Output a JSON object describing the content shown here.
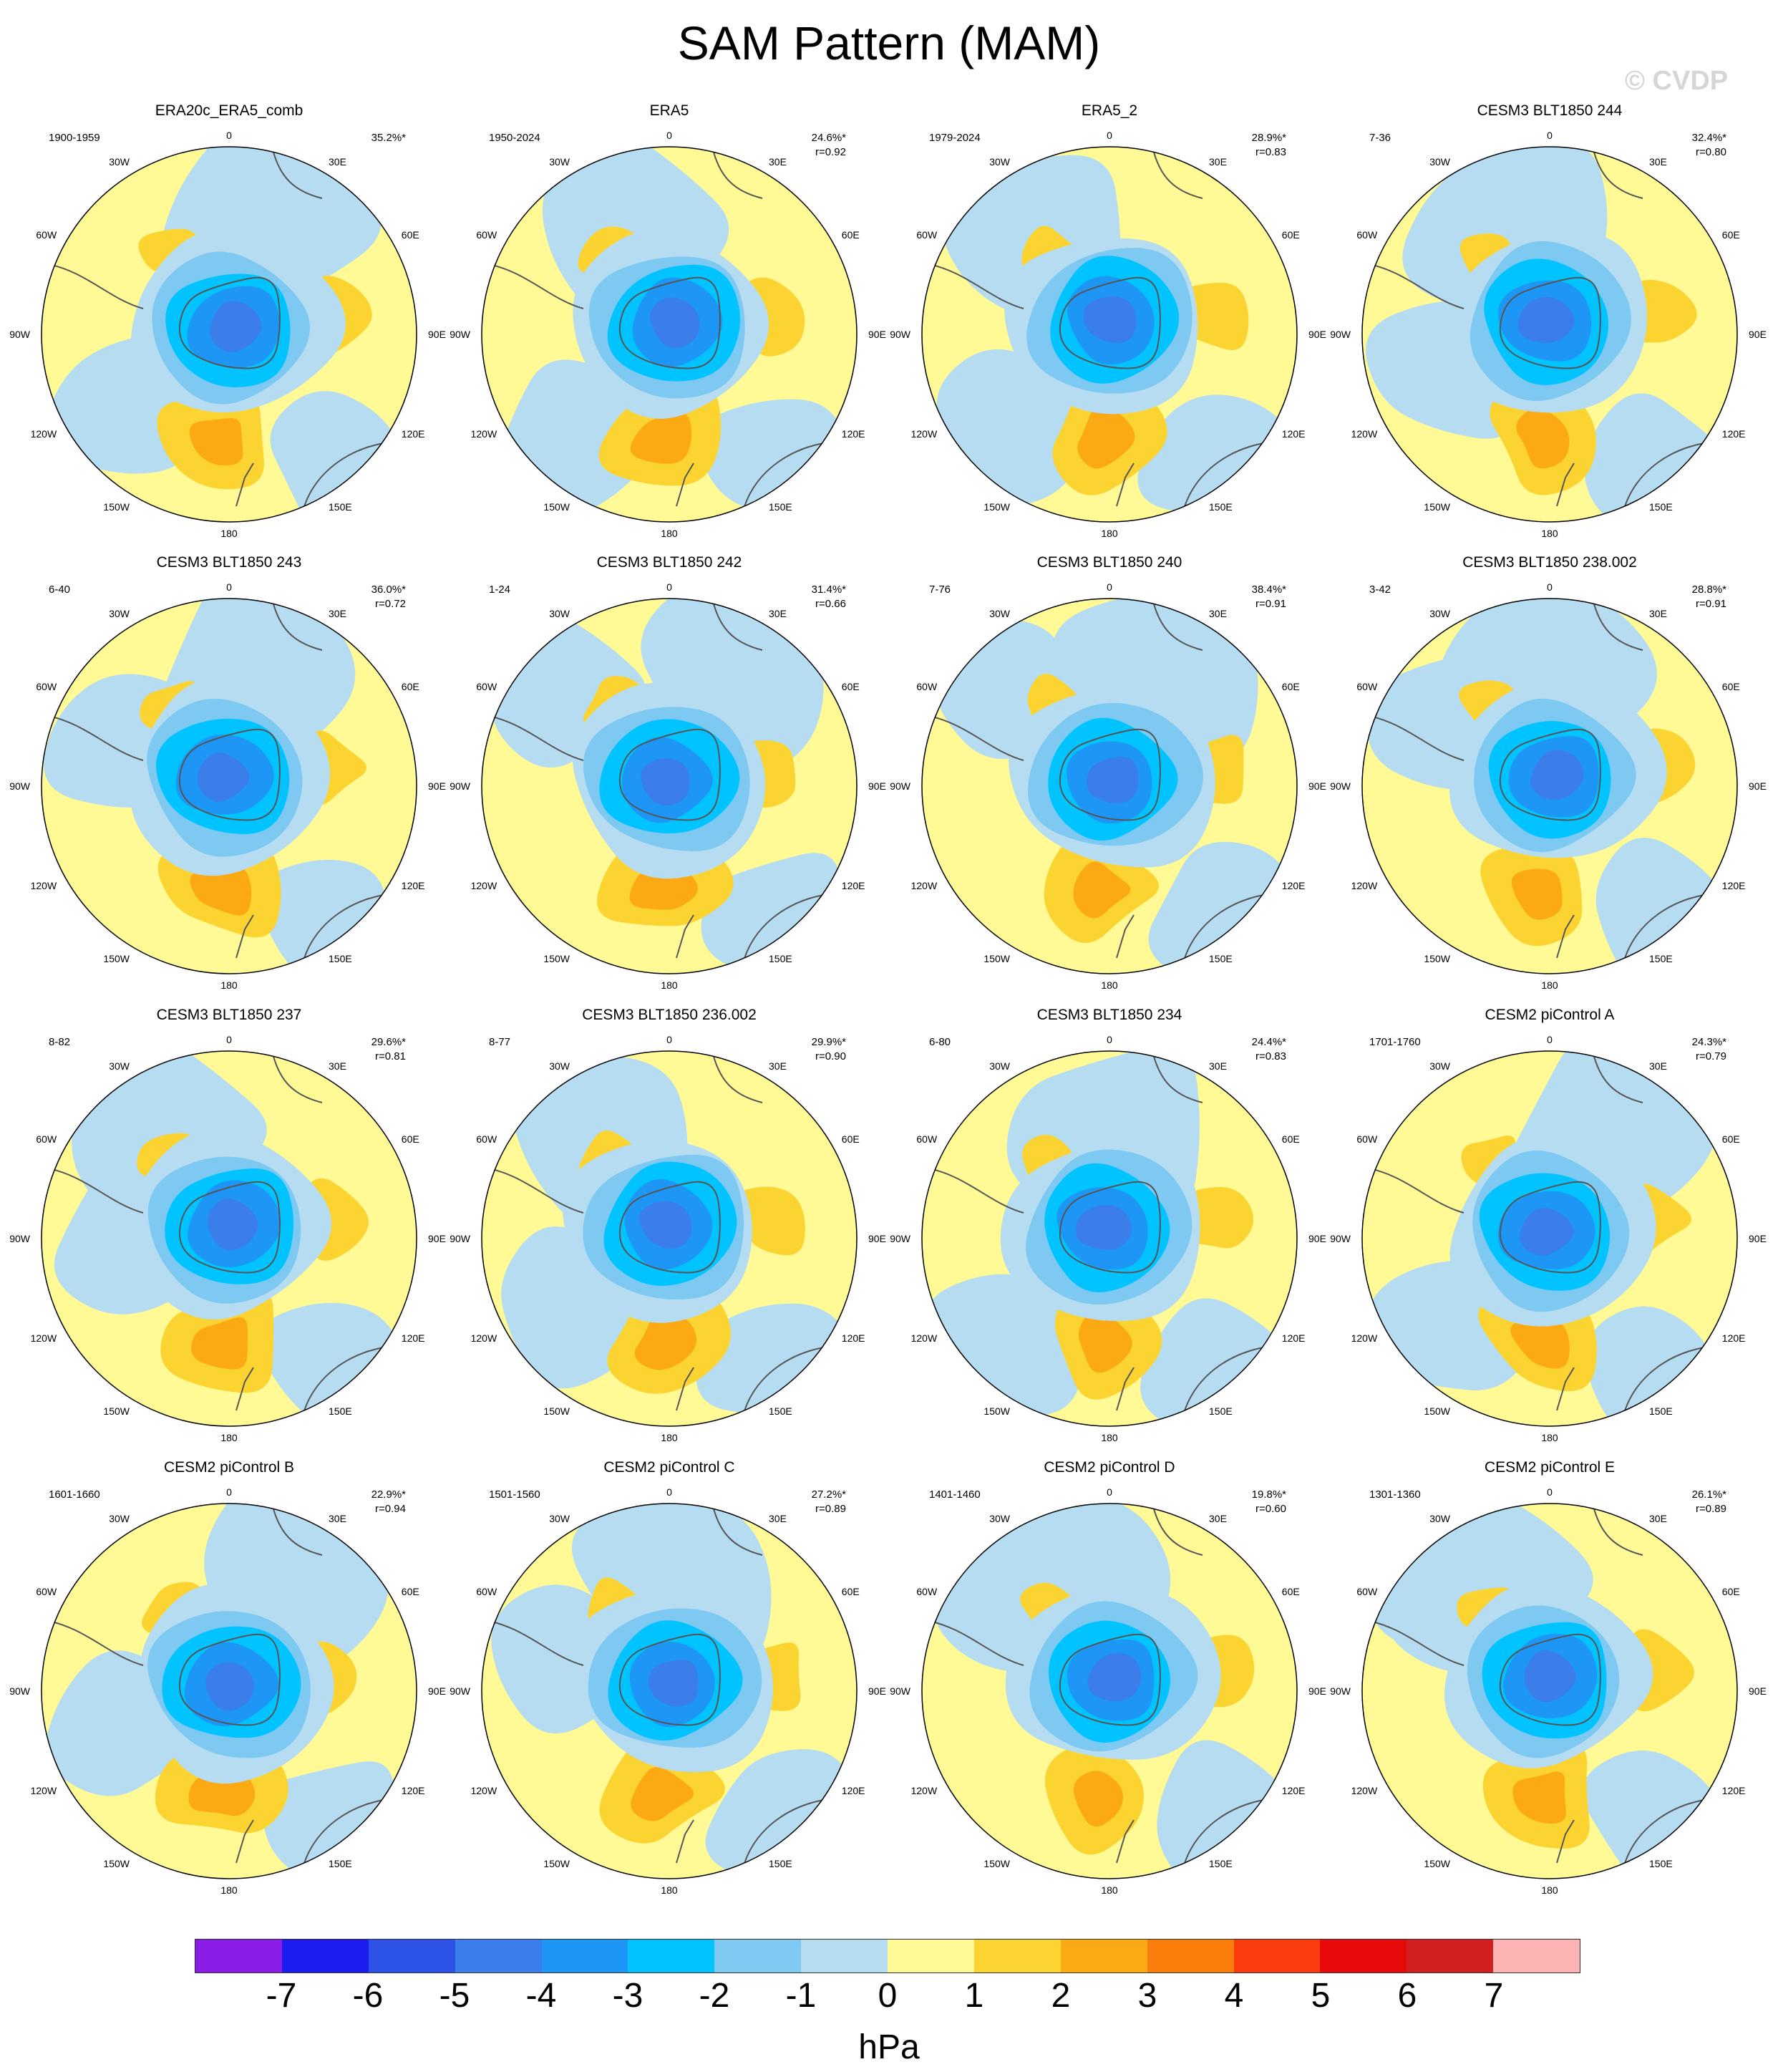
{
  "title": "SAM Pattern (MAM)",
  "watermark": "© CVDP",
  "lon_labels": [
    "0",
    "30E",
    "60E",
    "90E",
    "120E",
    "150E",
    "180",
    "150W",
    "120W",
    "90W",
    "60W",
    "30W"
  ],
  "colors": {
    "levels": [
      "#8c1de6",
      "#1c1cf0",
      "#2d52e6",
      "#3a7deb",
      "#1e96f5",
      "#00c3ff",
      "#7ec9f2",
      "#b6dcf1",
      "#fffa96",
      "#fcd431",
      "#fbaa14",
      "#fb7d0c",
      "#fb3c0c",
      "#e80a0a",
      "#d22020",
      "#feb4b4"
    ],
    "coast": "#555555",
    "border": "#000000"
  },
  "colorbar": {
    "ticks": [
      "-7",
      "-6",
      "-5",
      "-4",
      "-3",
      "-2",
      "-1",
      "0",
      "1",
      "2",
      "3",
      "4",
      "5",
      "6",
      "7"
    ],
    "units": "hPa"
  },
  "panels": [
    {
      "title": "ERA20c_ERA5_comb",
      "years": "1900-1959",
      "pct": "35.2%*",
      "r": ""
    },
    {
      "title": "ERA5",
      "years": "1950-2024",
      "pct": "24.6%*",
      "r": "r=0.92"
    },
    {
      "title": "ERA5_2",
      "years": "1979-2024",
      "pct": "28.9%*",
      "r": "r=0.83"
    },
    {
      "title": "CESM3 BLT1850 244",
      "years": "7-36",
      "pct": "32.4%*",
      "r": "r=0.80"
    },
    {
      "title": "CESM3 BLT1850 243",
      "years": "6-40",
      "pct": "36.0%*",
      "r": "r=0.72"
    },
    {
      "title": "CESM3 BLT1850 242",
      "years": "1-24",
      "pct": "31.4%*",
      "r": "r=0.66"
    },
    {
      "title": "CESM3 BLT1850 240",
      "years": "7-76",
      "pct": "38.4%*",
      "r": "r=0.91"
    },
    {
      "title": "CESM3 BLT1850 238.002",
      "years": "3-42",
      "pct": "28.8%*",
      "r": "r=0.91"
    },
    {
      "title": "CESM3 BLT1850 237",
      "years": "8-82",
      "pct": "29.6%*",
      "r": "r=0.81"
    },
    {
      "title": "CESM3 BLT1850 236.002",
      "years": "8-77",
      "pct": "29.9%*",
      "r": "r=0.90"
    },
    {
      "title": "CESM3 BLT1850 234",
      "years": "6-80",
      "pct": "24.4%*",
      "r": "r=0.83"
    },
    {
      "title": "CESM2 piControl A",
      "years": "1701-1760",
      "pct": "24.3%*",
      "r": "r=0.79"
    },
    {
      "title": "CESM2 piControl B",
      "years": "1601-1660",
      "pct": "22.9%*",
      "r": "r=0.94"
    },
    {
      "title": "CESM2 piControl C",
      "years": "1501-1560",
      "pct": "27.2%*",
      "r": "r=0.89"
    },
    {
      "title": "CESM2 piControl D",
      "years": "1401-1460",
      "pct": "19.8%*",
      "r": "r=0.60"
    },
    {
      "title": "CESM2 piControl E",
      "years": "1301-1360",
      "pct": "26.1%*",
      "r": "r=0.89"
    }
  ]
}
